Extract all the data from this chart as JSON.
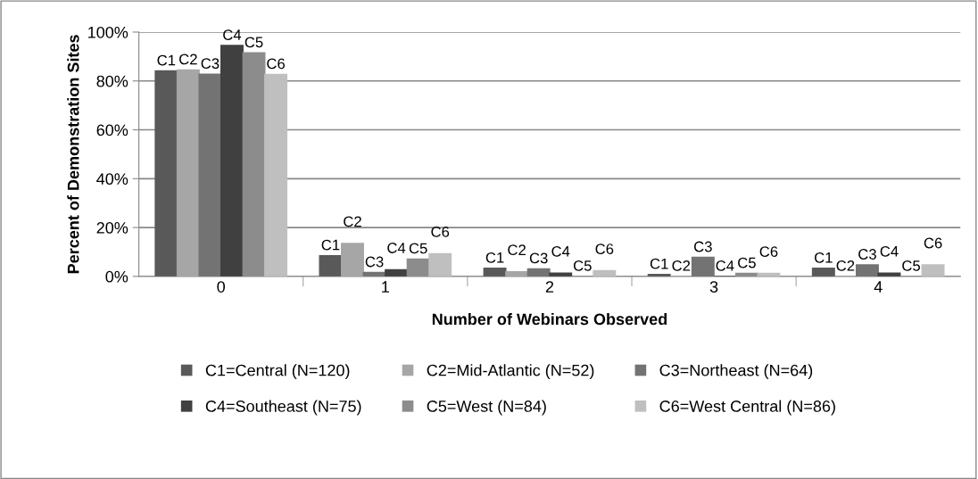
{
  "chart_data": {
    "type": "bar",
    "xlabel": "Number of Webinars Observed",
    "ylabel": "Percent of Demonstration Sites",
    "categories": [
      "0",
      "1",
      "2",
      "3",
      "4"
    ],
    "series": [
      {
        "name": "C1=Central (N=120)",
        "color": "#595959",
        "values": [
          84.1,
          8.5,
          3.3,
          0.8,
          3.3
        ],
        "value_labels": [
          "C1",
          "C1",
          "C1",
          "C1",
          "C1"
        ]
      },
      {
        "name": "C2=Mid-Atlantic (N=52)",
        "color": "#a6a6a6",
        "values": [
          84.5,
          13.5,
          1.9,
          0,
          0
        ],
        "value_labels": [
          "C2",
          "C2",
          "C2",
          "C2",
          "C2"
        ]
      },
      {
        "name": "C3=Northeast (N=64)",
        "color": "#737373",
        "values": [
          82.8,
          1.6,
          3.1,
          7.8,
          4.7
        ],
        "value_labels": [
          "C3",
          "C3",
          "C3",
          "C3",
          "C3"
        ]
      },
      {
        "name": "C4=Southeast (N=75)",
        "color": "#404040",
        "values": [
          94.5,
          2.7,
          1.3,
          0,
          1.3
        ],
        "value_labels": [
          "C4",
          "C4",
          "C4",
          "C4",
          "C4"
        ]
      },
      {
        "name": "C5=West (N=84)",
        "color": "#8c8c8c",
        "values": [
          91.5,
          7.1,
          0,
          1.2,
          0
        ],
        "value_labels": [
          "C5",
          "C5",
          "C5",
          "C5",
          "C5"
        ]
      },
      {
        "name": "C6=West Central (N=86)",
        "color": "#bfbfbf",
        "values": [
          82.7,
          9.3,
          2.3,
          1.2,
          4.7
        ],
        "value_labels": [
          "C6",
          "C6",
          "C6",
          "C6",
          "C6"
        ]
      }
    ],
    "ylim": [
      0,
      100
    ],
    "yticks": [
      {
        "value": 0,
        "label": "0%"
      },
      {
        "value": 20,
        "label": "20%"
      },
      {
        "value": 40,
        "label": "40%"
      },
      {
        "value": 60,
        "label": "60%"
      },
      {
        "value": 80,
        "label": "80%"
      },
      {
        "value": 100,
        "label": "100%"
      }
    ],
    "grid": "y",
    "legend": "bottom"
  }
}
